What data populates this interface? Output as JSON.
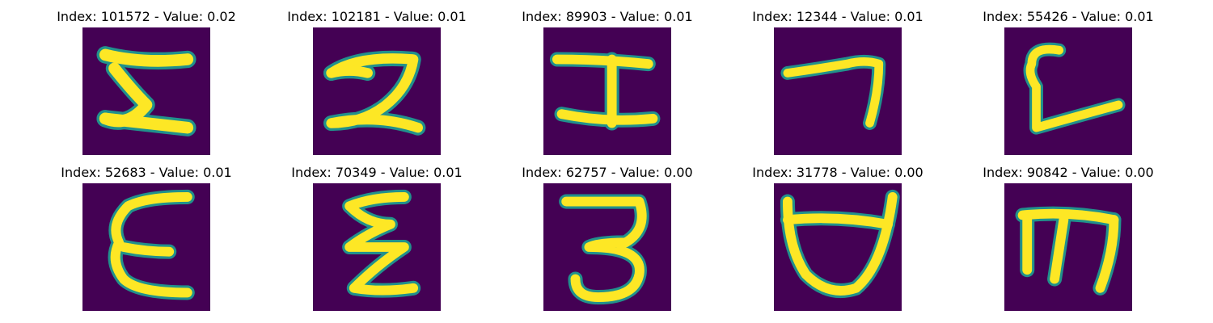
{
  "colors": {
    "background": "#440154",
    "edge_teal": "#21918c",
    "edge_green": "#35b779",
    "stroke_yellow": "#fde725"
  },
  "grid": {
    "items": [
      {
        "title": "Index: 101572 - Value: 0.02",
        "glyph": "stylized-I / Z shape"
      },
      {
        "title": "Index: 102181 - Value: 0.01",
        "glyph": "stylized-2 shape"
      },
      {
        "title": "Index: 89903 - Value: 0.01",
        "glyph": "H-like I shape"
      },
      {
        "title": "Index: 12344 - Value: 0.01",
        "glyph": "7-like shape"
      },
      {
        "title": "Index: 55426 - Value: 0.01",
        "glyph": "L-like shape"
      },
      {
        "title": "Index: 52683 - Value: 0.01",
        "glyph": "epsilon shape"
      },
      {
        "title": "Index: 70349 - Value: 0.01",
        "glyph": "sigma-like shape"
      },
      {
        "title": "Index: 62757 - Value: 0.00",
        "glyph": "3 shape"
      },
      {
        "title": "Index: 31778 - Value: 0.00",
        "glyph": "cup/U shape"
      },
      {
        "title": "Index: 90842 - Value: 0.00",
        "glyph": "m-like shape"
      }
    ]
  }
}
